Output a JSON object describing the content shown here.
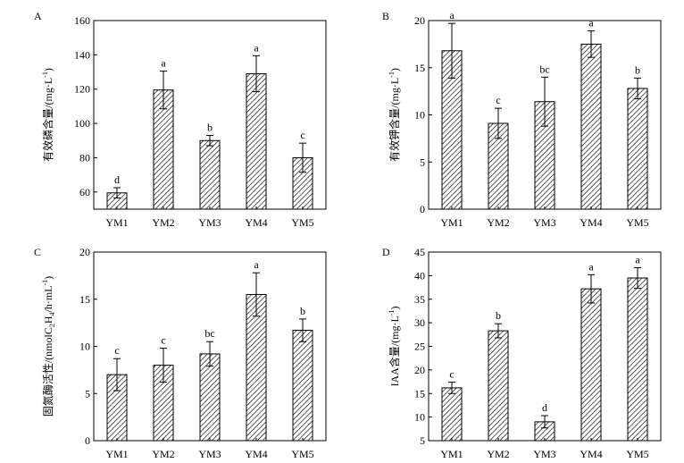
{
  "chart_data": [
    {
      "type": "bar",
      "panel_label": "A",
      "ylabel_parts": [
        "有效磷含量/(mg·L",
        "-1",
        ")"
      ],
      "ylim": [
        50,
        160
      ],
      "yticks": [
        "60",
        "80",
        "100",
        "120",
        "140",
        "160"
      ],
      "categories": [
        "YM1",
        "YM2",
        "YM3",
        "YM4",
        "YM5"
      ],
      "values": [
        59.5,
        119.5,
        90,
        129,
        80
      ],
      "errors": [
        3,
        11,
        3,
        10.5,
        8.5
      ],
      "significance": [
        "d",
        "a",
        "b",
        "a",
        "c"
      ]
    },
    {
      "type": "bar",
      "panel_label": "B",
      "ylabel_parts": [
        "有效钾含量/(mg·L",
        "-1",
        ")"
      ],
      "ylim": [
        0,
        20
      ],
      "yticks": [
        "0",
        "5",
        "10",
        "15",
        "20"
      ],
      "categories": [
        "YM1",
        "YM2",
        "YM3",
        "YM4",
        "YM5"
      ],
      "values": [
        16.8,
        9.1,
        11.4,
        17.5,
        12.8
      ],
      "errors": [
        2.9,
        1.6,
        2.6,
        1.4,
        1.1
      ],
      "significance": [
        "a",
        "c",
        "bc",
        "a",
        "b"
      ]
    },
    {
      "type": "bar",
      "panel_label": "C",
      "ylabel_parts": [
        "固氮酶活性/(nmolC",
        "2",
        "H",
        "4",
        "/h·mL",
        "-1",
        ")"
      ],
      "ylim": [
        0,
        20
      ],
      "yticks": [
        "0",
        "5",
        "10",
        "15",
        "20"
      ],
      "categories": [
        "YM1",
        "YM2",
        "YM3",
        "YM4",
        "YM5"
      ],
      "values": [
        7,
        8,
        9.2,
        15.5,
        11.7
      ],
      "errors": [
        1.7,
        1.8,
        1.3,
        2.3,
        1.2
      ],
      "significance": [
        "c",
        "c",
        "bc",
        "a",
        "b"
      ]
    },
    {
      "type": "bar",
      "panel_label": "D",
      "ylabel_parts": [
        "IAA含量/(mg·L",
        "-1",
        ")"
      ],
      "ylim": [
        5,
        45
      ],
      "yticks": [
        "5",
        "10",
        "15",
        "20",
        "25",
        "30",
        "35",
        "40",
        "45"
      ],
      "categories": [
        "YM1",
        "YM2",
        "YM3",
        "YM4",
        "YM5"
      ],
      "values": [
        16.2,
        28.3,
        9,
        37.2,
        39.5
      ],
      "errors": [
        1.2,
        1.5,
        1.3,
        3,
        2.2
      ],
      "significance": [
        "c",
        "b",
        "d",
        "a",
        "a"
      ]
    }
  ]
}
